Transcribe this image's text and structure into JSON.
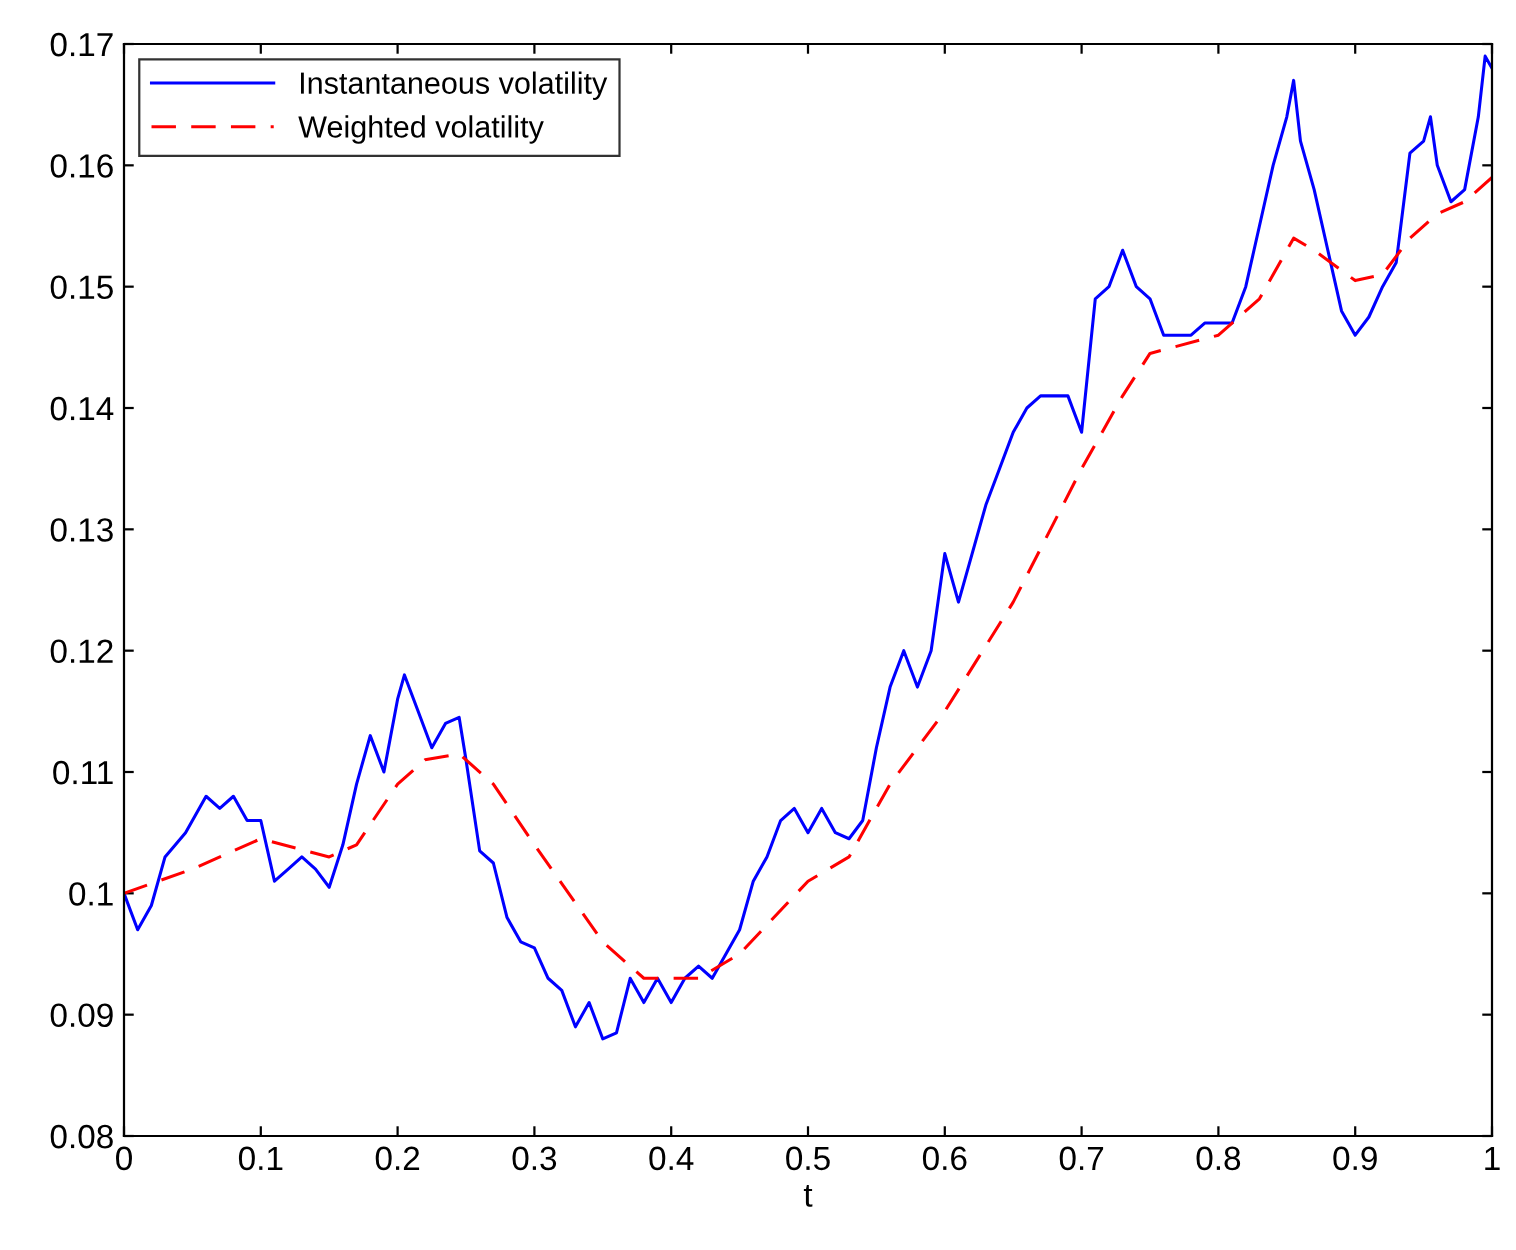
{
  "chart_data": {
    "type": "line",
    "xlabel": "t",
    "xlim": [
      0,
      1
    ],
    "ylim": [
      0.08,
      0.17
    ],
    "xticks": [
      0,
      0.1,
      0.2,
      0.3,
      0.4,
      0.5,
      0.6,
      0.7,
      0.8,
      0.9,
      1
    ],
    "yticks": [
      0.08,
      0.09,
      0.1,
      0.11,
      0.12,
      0.13,
      0.14,
      0.15,
      0.16,
      0.17
    ],
    "grid": false,
    "legend": "top left",
    "series": [
      {
        "name": "Instantaneous volatility",
        "color": "#0000ff",
        "line_style": "solid",
        "x": [
          0,
          0.01,
          0.02,
          0.03,
          0.045,
          0.06,
          0.07,
          0.08,
          0.09,
          0.1,
          0.11,
          0.12,
          0.13,
          0.14,
          0.15,
          0.16,
          0.17,
          0.18,
          0.19,
          0.2,
          0.205,
          0.215,
          0.225,
          0.235,
          0.245,
          0.25,
          0.26,
          0.27,
          0.28,
          0.29,
          0.3,
          0.31,
          0.32,
          0.33,
          0.34,
          0.35,
          0.36,
          0.37,
          0.38,
          0.39,
          0.4,
          0.41,
          0.42,
          0.43,
          0.44,
          0.45,
          0.46,
          0.47,
          0.48,
          0.49,
          0.5,
          0.51,
          0.52,
          0.53,
          0.54,
          0.55,
          0.56,
          0.57,
          0.58,
          0.59,
          0.6,
          0.61,
          0.62,
          0.63,
          0.64,
          0.65,
          0.66,
          0.67,
          0.68,
          0.69,
          0.7,
          0.71,
          0.72,
          0.73,
          0.74,
          0.75,
          0.76,
          0.77,
          0.78,
          0.79,
          0.8,
          0.81,
          0.82,
          0.83,
          0.84,
          0.85,
          0.855,
          0.86,
          0.87,
          0.88,
          0.89,
          0.9,
          0.91,
          0.92,
          0.93,
          0.94,
          0.95,
          0.955,
          0.96,
          0.97,
          0.98,
          0.99,
          0.995,
          1.0
        ],
        "values": [
          0.1,
          0.097,
          0.099,
          0.103,
          0.105,
          0.108,
          0.107,
          0.108,
          0.106,
          0.106,
          0.101,
          0.102,
          0.103,
          0.102,
          0.1005,
          0.104,
          0.109,
          0.113,
          0.11,
          0.116,
          0.118,
          0.115,
          0.112,
          0.114,
          0.1145,
          0.111,
          0.1035,
          0.1025,
          0.098,
          0.096,
          0.0955,
          0.093,
          0.092,
          0.089,
          0.091,
          0.088,
          0.0885,
          0.093,
          0.091,
          0.093,
          0.091,
          0.093,
          0.094,
          0.093,
          0.095,
          0.097,
          0.101,
          0.103,
          0.106,
          0.107,
          0.105,
          0.107,
          0.105,
          0.1045,
          0.106,
          0.112,
          0.117,
          0.12,
          0.117,
          0.12,
          0.128,
          0.124,
          0.128,
          0.132,
          0.135,
          0.138,
          0.14,
          0.141,
          0.141,
          0.141,
          0.138,
          0.149,
          0.15,
          0.153,
          0.15,
          0.149,
          0.146,
          0.146,
          0.146,
          0.147,
          0.147,
          0.147,
          0.15,
          0.155,
          0.16,
          0.164,
          0.167,
          0.162,
          0.158,
          0.153,
          0.148,
          0.146,
          0.1475,
          0.15,
          0.152,
          0.161,
          0.162,
          0.164,
          0.16,
          0.157,
          0.158,
          0.164,
          0.169,
          0.168
        ]
      },
      {
        "name": "Weighted volatility",
        "color": "#ff0000",
        "line_style": "dashed",
        "x": [
          0,
          0.05,
          0.1,
          0.15,
          0.17,
          0.2,
          0.22,
          0.245,
          0.27,
          0.3,
          0.35,
          0.38,
          0.42,
          0.45,
          0.5,
          0.53,
          0.56,
          0.6,
          0.65,
          0.7,
          0.73,
          0.75,
          0.8,
          0.83,
          0.855,
          0.87,
          0.9,
          0.92,
          0.94,
          0.96,
          0.98,
          1.0
        ],
        "values": [
          0.1,
          0.102,
          0.1045,
          0.103,
          0.104,
          0.109,
          0.111,
          0.1115,
          0.109,
          0.104,
          0.096,
          0.093,
          0.093,
          0.095,
          0.101,
          0.103,
          0.109,
          0.115,
          0.124,
          0.135,
          0.141,
          0.1445,
          0.146,
          0.149,
          0.154,
          0.153,
          0.1505,
          0.151,
          0.154,
          0.156,
          0.157,
          0.159
        ]
      }
    ]
  }
}
